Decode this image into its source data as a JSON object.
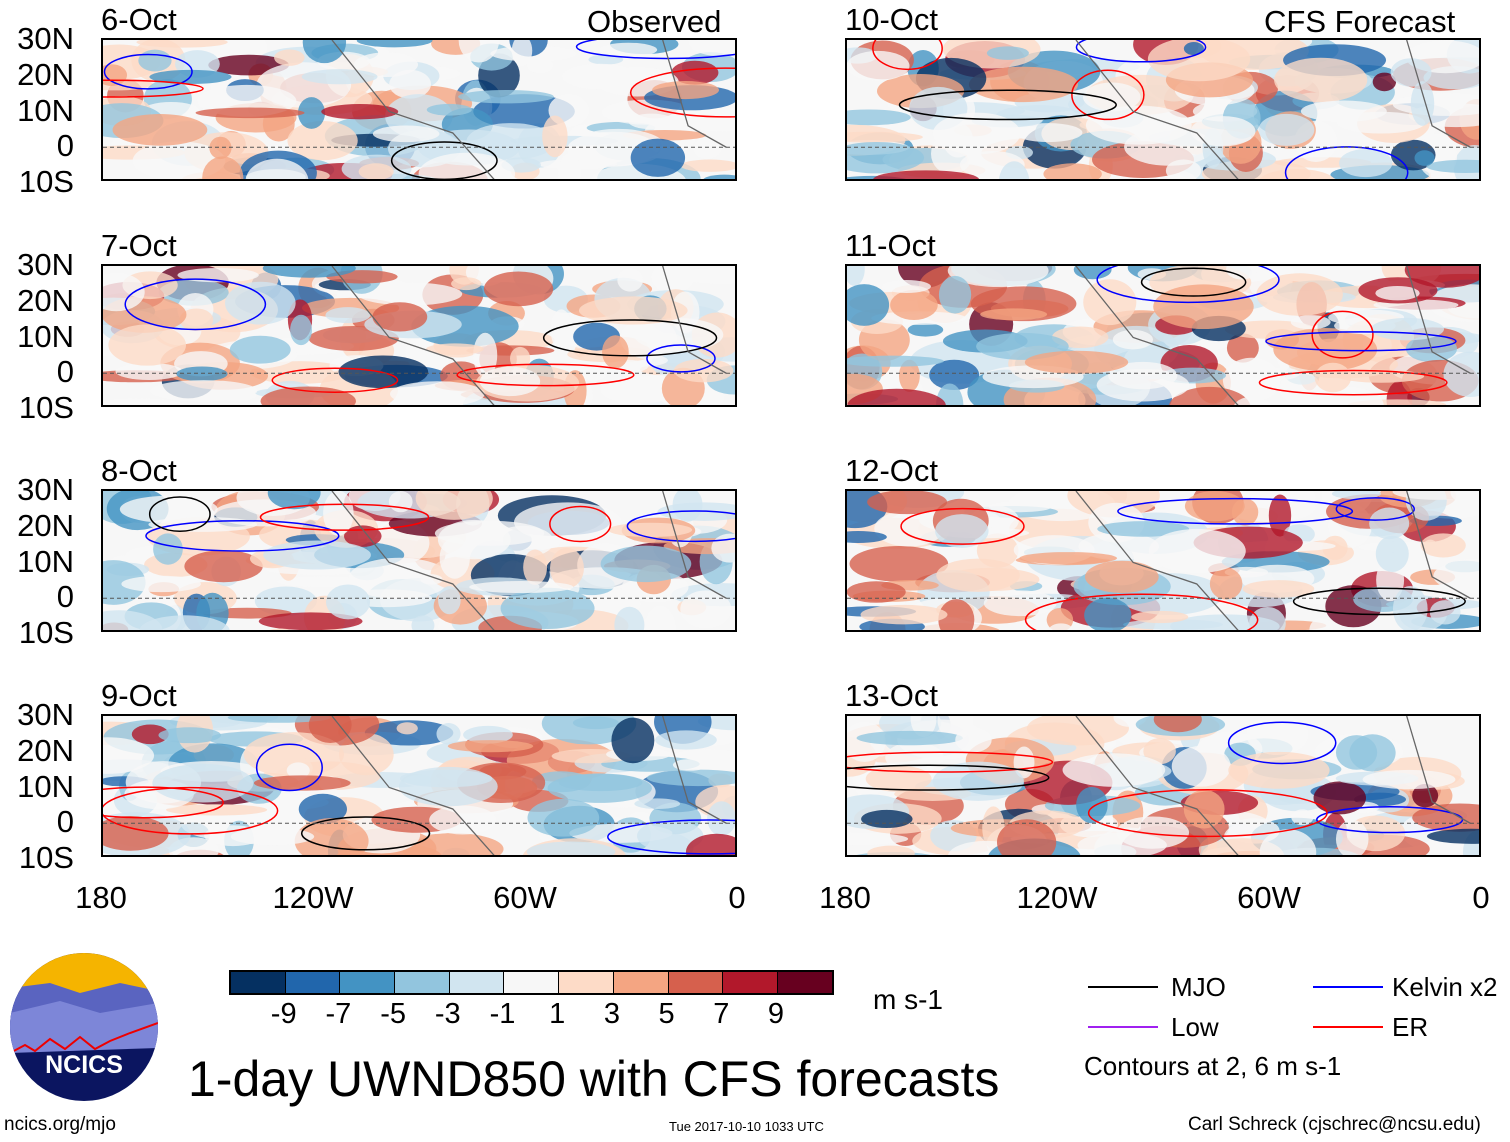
{
  "title": "1-day UWND850 with CFS forecasts",
  "headers": {
    "observed": "Observed",
    "forecast": "CFS Forecast"
  },
  "panels_left": [
    "6-Oct",
    "7-Oct",
    "8-Oct",
    "9-Oct"
  ],
  "panels_right": [
    "10-Oct",
    "11-Oct",
    "12-Oct",
    "13-Oct"
  ],
  "lat_labels": [
    "30N",
    "20N",
    "10N",
    "0",
    "10S"
  ],
  "lon_labels": [
    "180",
    "120W",
    "60W",
    "0"
  ],
  "colorbar": {
    "colors": [
      "#053061",
      "#2166ac",
      "#4393c3",
      "#92c5de",
      "#d1e5f0",
      "#f7f7f7",
      "#fddbc7",
      "#f4a582",
      "#d6604d",
      "#b2182b",
      "#67001f"
    ],
    "labels": [
      "-9",
      "-7",
      "-5",
      "-3",
      "-1",
      "1",
      "3",
      "5",
      "7",
      "9"
    ],
    "units": "m s-1"
  },
  "legend": {
    "items": [
      {
        "label": "MJO",
        "color": "#000000"
      },
      {
        "label": "Kelvin x2",
        "color": "#0000ff"
      },
      {
        "label": "Low",
        "color": "#a020f0"
      },
      {
        "label": "ER",
        "color": "#ff0000"
      }
    ],
    "note": "Contours at 2, 6 m s-1"
  },
  "logo": {
    "text": "NCICS"
  },
  "footer": {
    "url": "ncics.org/mjo",
    "timestamp": "Tue 2017-10-10 1033 UTC",
    "credit": "Carl Schreck (cjschrec@ncsu.edu)"
  }
}
